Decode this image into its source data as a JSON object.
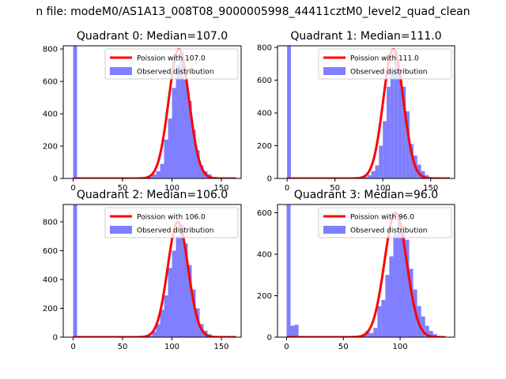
{
  "figure": {
    "suptitle": "n file: modeM0/AS1A13_008T08_9000005998_44411cztM0_level2_quad_clean"
  },
  "colors": {
    "hist": "#7f7fff",
    "poisson": "#ff0000",
    "axis": "#000000"
  },
  "chart_data": [
    {
      "type": "bar",
      "title": "Quadrant 0: Median=107.0",
      "legend": {
        "placement": "upper-right",
        "line_label": "Poission with 107.0",
        "hist_label": "Observed distribution"
      },
      "xlim": [
        -10,
        170
      ],
      "ylim": [
        0,
        820
      ],
      "xticks": [
        0,
        50,
        100,
        150
      ],
      "yticks": [
        0,
        200,
        400,
        600,
        800
      ],
      "bin_width": 4,
      "hist": [
        {
          "x": 0,
          "y": 820
        },
        {
          "x": 4,
          "y": 5
        },
        {
          "x": 8,
          "y": 3
        },
        {
          "x": 72,
          "y": 4
        },
        {
          "x": 76,
          "y": 10
        },
        {
          "x": 80,
          "y": 25
        },
        {
          "x": 84,
          "y": 45
        },
        {
          "x": 88,
          "y": 90
        },
        {
          "x": 92,
          "y": 240
        },
        {
          "x": 96,
          "y": 370
        },
        {
          "x": 100,
          "y": 560
        },
        {
          "x": 104,
          "y": 700
        },
        {
          "x": 108,
          "y": 780
        },
        {
          "x": 112,
          "y": 610
        },
        {
          "x": 116,
          "y": 480
        },
        {
          "x": 120,
          "y": 300
        },
        {
          "x": 124,
          "y": 175
        },
        {
          "x": 128,
          "y": 80
        },
        {
          "x": 132,
          "y": 45
        },
        {
          "x": 136,
          "y": 25
        },
        {
          "x": 140,
          "y": 10
        },
        {
          "x": 144,
          "y": 4
        }
      ],
      "poisson": {
        "mean": 107.0,
        "peak": 800,
        "xmin": 0,
        "xmax": 165
      }
    },
    {
      "type": "bar",
      "title": "Quadrant 1: Median=111.0",
      "legend": {
        "placement": "upper-right",
        "line_label": "Poission with 111.0",
        "hist_label": "Observed distribution"
      },
      "xlim": [
        -10,
        175
      ],
      "ylim": [
        0,
        810
      ],
      "xticks": [
        0,
        50,
        100,
        150
      ],
      "yticks": [
        0,
        200,
        400,
        600,
        800
      ],
      "bin_width": 4,
      "hist": [
        {
          "x": 0,
          "y": 810
        },
        {
          "x": 4,
          "y": 5
        },
        {
          "x": 76,
          "y": 5
        },
        {
          "x": 80,
          "y": 10
        },
        {
          "x": 84,
          "y": 20
        },
        {
          "x": 88,
          "y": 45
        },
        {
          "x": 92,
          "y": 80
        },
        {
          "x": 96,
          "y": 200
        },
        {
          "x": 100,
          "y": 350
        },
        {
          "x": 104,
          "y": 560
        },
        {
          "x": 108,
          "y": 650
        },
        {
          "x": 112,
          "y": 780
        },
        {
          "x": 116,
          "y": 640
        },
        {
          "x": 120,
          "y": 560
        },
        {
          "x": 124,
          "y": 410
        },
        {
          "x": 128,
          "y": 210
        },
        {
          "x": 132,
          "y": 140
        },
        {
          "x": 136,
          "y": 85
        },
        {
          "x": 140,
          "y": 45
        },
        {
          "x": 144,
          "y": 20
        },
        {
          "x": 148,
          "y": 8
        }
      ],
      "poisson": {
        "mean": 111.0,
        "peak": 790,
        "xmin": 0,
        "xmax": 170
      }
    },
    {
      "type": "bar",
      "title": "Quadrant 2: Median=106.0",
      "legend": {
        "placement": "upper-right",
        "line_label": "Poission with 106.0",
        "hist_label": "Observed distribution"
      },
      "xlim": [
        -10,
        170
      ],
      "ylim": [
        0,
        920
      ],
      "xticks": [
        0,
        50,
        100,
        150
      ],
      "yticks": [
        0,
        200,
        400,
        600,
        800
      ],
      "bin_width": 4,
      "hist": [
        {
          "x": 0,
          "y": 920
        },
        {
          "x": 4,
          "y": 5
        },
        {
          "x": 8,
          "y": 3
        },
        {
          "x": 72,
          "y": 4
        },
        {
          "x": 76,
          "y": 10
        },
        {
          "x": 80,
          "y": 40
        },
        {
          "x": 84,
          "y": 90
        },
        {
          "x": 88,
          "y": 190
        },
        {
          "x": 92,
          "y": 290
        },
        {
          "x": 96,
          "y": 480
        },
        {
          "x": 100,
          "y": 600
        },
        {
          "x": 104,
          "y": 700
        },
        {
          "x": 108,
          "y": 780
        },
        {
          "x": 112,
          "y": 650
        },
        {
          "x": 116,
          "y": 500
        },
        {
          "x": 120,
          "y": 330
        },
        {
          "x": 124,
          "y": 200
        },
        {
          "x": 128,
          "y": 90
        },
        {
          "x": 132,
          "y": 45
        },
        {
          "x": 136,
          "y": 20
        },
        {
          "x": 140,
          "y": 8
        }
      ],
      "poisson": {
        "mean": 106.0,
        "peak": 800,
        "xmin": 0,
        "xmax": 165
      }
    },
    {
      "type": "bar",
      "title": "Quadrant 3: Median=96.0",
      "legend": {
        "placement": "upper-right",
        "line_label": "Poission with 96.0",
        "hist_label": "Observed distribution"
      },
      "xlim": [
        -8,
        148
      ],
      "ylim": [
        0,
        640
      ],
      "xticks": [
        0,
        50,
        100
      ],
      "yticks": [
        0,
        200,
        400,
        600
      ],
      "bin_width": 3.5,
      "hist": [
        {
          "x": 0,
          "y": 640
        },
        {
          "x": 3.5,
          "y": 55
        },
        {
          "x": 7,
          "y": 60
        },
        {
          "x": 10.5,
          "y": 5
        },
        {
          "x": 45,
          "y": 5
        },
        {
          "x": 59,
          "y": 5
        },
        {
          "x": 66,
          "y": 10
        },
        {
          "x": 69.5,
          "y": 30
        },
        {
          "x": 73,
          "y": 20
        },
        {
          "x": 76.5,
          "y": 45
        },
        {
          "x": 80,
          "y": 150
        },
        {
          "x": 83.5,
          "y": 180
        },
        {
          "x": 87,
          "y": 300
        },
        {
          "x": 90.5,
          "y": 390
        },
        {
          "x": 94,
          "y": 500
        },
        {
          "x": 97.5,
          "y": 590
        },
        {
          "x": 101,
          "y": 510
        },
        {
          "x": 104.5,
          "y": 470
        },
        {
          "x": 108,
          "y": 330
        },
        {
          "x": 111.5,
          "y": 230
        },
        {
          "x": 115,
          "y": 150
        },
        {
          "x": 118.5,
          "y": 100
        },
        {
          "x": 122,
          "y": 55
        },
        {
          "x": 125.5,
          "y": 30
        },
        {
          "x": 129,
          "y": 15
        },
        {
          "x": 132.5,
          "y": 5
        }
      ],
      "poisson": {
        "mean": 96.0,
        "peak": 600,
        "xmin": 0,
        "xmax": 140
      }
    }
  ]
}
